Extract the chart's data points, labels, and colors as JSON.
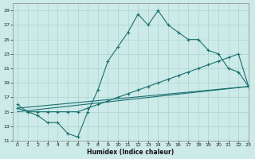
{
  "xlabel": "Humidex (Indice chaleur)",
  "bg_color": "#cceae8",
  "line_color": "#1a7070",
  "grid_color": "#aad4d0",
  "xmin": -0.5,
  "xmax": 23,
  "ymin": 11,
  "ymax": 30,
  "line1_x": [
    0,
    1,
    2,
    3,
    4,
    5,
    6,
    7,
    8,
    9,
    10,
    11,
    12,
    13,
    14,
    15,
    16,
    17,
    18,
    19,
    20,
    21,
    22,
    23
  ],
  "line1_y": [
    16,
    15,
    14.5,
    13.5,
    13.5,
    12,
    11.5,
    15,
    18,
    22,
    24,
    26,
    28.5,
    27,
    29,
    27,
    26,
    25,
    25,
    23.5,
    23,
    21,
    20.5,
    18.5
  ],
  "line2_x": [
    0,
    1,
    2,
    3,
    4,
    5,
    6,
    7,
    8,
    9,
    10,
    11,
    12,
    13,
    14,
    15,
    16,
    17,
    18,
    19,
    20,
    21,
    22,
    23
  ],
  "line2_y": [
    15.5,
    15,
    15,
    15,
    15,
    15,
    15,
    15.5,
    16,
    16.5,
    17,
    17.5,
    18,
    18.5,
    19,
    19.5,
    20,
    20.5,
    21,
    21.5,
    22,
    22.5,
    23,
    18.5
  ],
  "line3_x": [
    0,
    23
  ],
  "line3_y": [
    15.5,
    18.5
  ],
  "line4_x": [
    0,
    23
  ],
  "line4_y": [
    15,
    18.5
  ],
  "xticks": [
    0,
    1,
    2,
    3,
    4,
    5,
    6,
    7,
    8,
    9,
    10,
    11,
    12,
    13,
    14,
    15,
    16,
    17,
    18,
    19,
    20,
    21,
    22,
    23
  ],
  "yticks": [
    11,
    13,
    15,
    17,
    19,
    21,
    23,
    25,
    27,
    29
  ],
  "marker_size": 2.5
}
